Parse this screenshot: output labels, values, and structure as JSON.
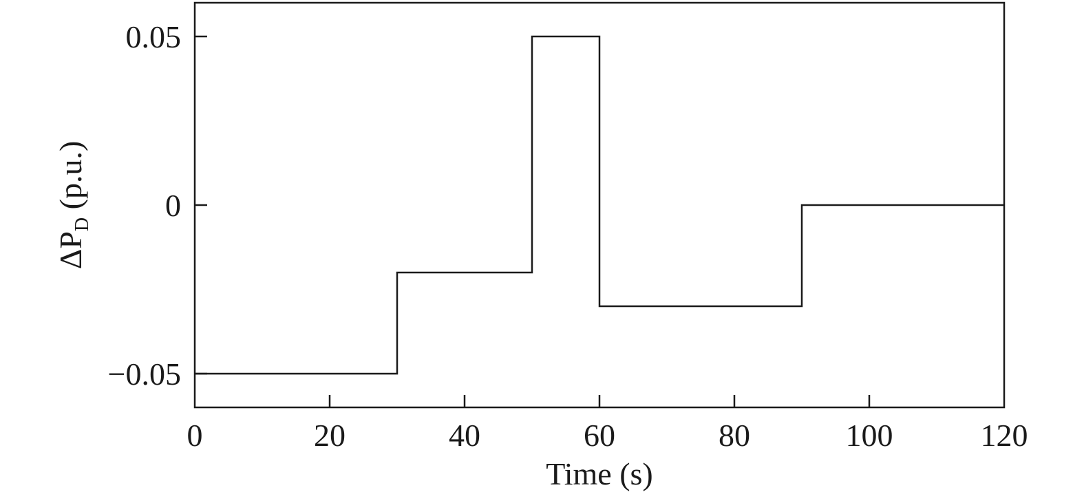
{
  "chart_data": {
    "type": "line",
    "step": true,
    "title": "",
    "xlabel": "Time (s)",
    "ylabel": {
      "prefix": "ΔP",
      "subscript": "D",
      "suffix": " (p.u.)"
    },
    "xlim": [
      0,
      120
    ],
    "ylim": [
      -0.06,
      0.06
    ],
    "xticks": [
      0,
      20,
      40,
      60,
      80,
      100,
      120
    ],
    "xtick_labels": [
      "0",
      "20",
      "40",
      "60",
      "80",
      "100",
      "120"
    ],
    "yticks": [
      -0.05,
      0,
      0.05
    ],
    "ytick_labels": [
      "−0.05",
      "0",
      "0.05"
    ],
    "grid": false,
    "series": [
      {
        "x": [
          0,
          30,
          30,
          50,
          50,
          60,
          60,
          90,
          90,
          120
        ],
        "y": [
          -0.05,
          -0.05,
          -0.02,
          -0.02,
          0.05,
          0.05,
          -0.03,
          -0.03,
          0,
          0
        ],
        "color": "#1a1a1a"
      }
    ]
  }
}
